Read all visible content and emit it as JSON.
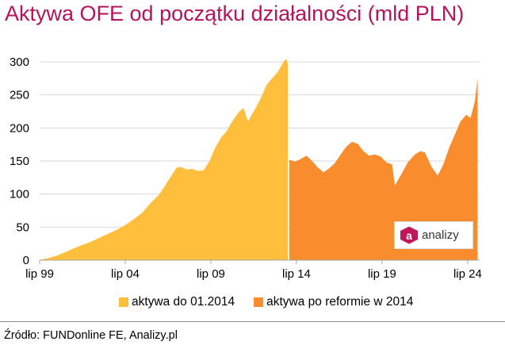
{
  "title": "Aktywa OFE od początku działalności (mld PLN)",
  "source": "Źródło: FUNDonline FE, Analizy.pl",
  "logo": {
    "mark": "a",
    "text": "analizy",
    "icon": "analizy-logo-icon"
  },
  "colors": {
    "title": "#b5135c",
    "series_before": "#ffbf3c",
    "series_after": "#f98c2c",
    "grid": "#d9d9d9"
  },
  "chart_data": {
    "type": "area",
    "title": "Aktywa OFE od początku działalności (mld PLN)",
    "xlabel": "",
    "ylabel": "",
    "ylim": [
      0,
      300
    ],
    "y_ticks": [
      0,
      50,
      100,
      150,
      200,
      250,
      300
    ],
    "x_range": [
      1999.5,
      2025.2
    ],
    "x_ticks": [
      {
        "label": "lip 99",
        "date": "1999-07"
      },
      {
        "label": "lip 04",
        "date": "2004-07"
      },
      {
        "label": "lip 09",
        "date": "2009-07"
      },
      {
        "label": "lip 14",
        "date": "2014-07"
      },
      {
        "label": "lip 19",
        "date": "2019-07"
      },
      {
        "label": "lip 24",
        "date": "2024-07"
      }
    ],
    "grid": "horizontal",
    "legend_position": "bottom",
    "series": [
      {
        "name": "aktywa do 01.2014",
        "color": "#ffbf3c",
        "points": [
          [
            "1999-06",
            0
          ],
          [
            "2000-01",
            3
          ],
          [
            "2000-07",
            7
          ],
          [
            "2001-01",
            12
          ],
          [
            "2001-07",
            18
          ],
          [
            "2002-01",
            23
          ],
          [
            "2002-07",
            28
          ],
          [
            "2003-01",
            34
          ],
          [
            "2003-07",
            40
          ],
          [
            "2004-01",
            46
          ],
          [
            "2004-07",
            53
          ],
          [
            "2005-01",
            62
          ],
          [
            "2005-07",
            72
          ],
          [
            "2006-01",
            87
          ],
          [
            "2006-07",
            100
          ],
          [
            "2007-01",
            120
          ],
          [
            "2007-07",
            140
          ],
          [
            "2007-10",
            141
          ],
          [
            "2008-02",
            137
          ],
          [
            "2008-06",
            138
          ],
          [
            "2008-10",
            135
          ],
          [
            "2009-02",
            136
          ],
          [
            "2009-06",
            150
          ],
          [
            "2009-10",
            170
          ],
          [
            "2010-02",
            185
          ],
          [
            "2010-06",
            195
          ],
          [
            "2010-10",
            210
          ],
          [
            "2011-03",
            225
          ],
          [
            "2011-06",
            230
          ],
          [
            "2011-09",
            210
          ],
          [
            "2012-01",
            225
          ],
          [
            "2012-06",
            245
          ],
          [
            "2012-10",
            265
          ],
          [
            "2013-02",
            275
          ],
          [
            "2013-06",
            285
          ],
          [
            "2013-10",
            300
          ],
          [
            "2013-12",
            305
          ],
          [
            "2014-01",
            297
          ]
        ]
      },
      {
        "name": "aktywa po reformie w 2014",
        "color": "#f98c2c",
        "points": [
          [
            "2014-02",
            152
          ],
          [
            "2014-06",
            149
          ],
          [
            "2014-10",
            153
          ],
          [
            "2015-02",
            158
          ],
          [
            "2015-06",
            150
          ],
          [
            "2015-10",
            140
          ],
          [
            "2016-02",
            133
          ],
          [
            "2016-06",
            139
          ],
          [
            "2016-10",
            147
          ],
          [
            "2017-02",
            160
          ],
          [
            "2017-06",
            172
          ],
          [
            "2017-10",
            179
          ],
          [
            "2018-02",
            176
          ],
          [
            "2018-06",
            165
          ],
          [
            "2018-10",
            158
          ],
          [
            "2019-02",
            160
          ],
          [
            "2019-06",
            157
          ],
          [
            "2019-10",
            148
          ],
          [
            "2020-02",
            145
          ],
          [
            "2020-04",
            113
          ],
          [
            "2020-08",
            128
          ],
          [
            "2021-01",
            148
          ],
          [
            "2021-06",
            160
          ],
          [
            "2021-10",
            165
          ],
          [
            "2022-01",
            163
          ],
          [
            "2022-06",
            140
          ],
          [
            "2022-10",
            128
          ],
          [
            "2023-02",
            145
          ],
          [
            "2023-06",
            170
          ],
          [
            "2023-10",
            190
          ],
          [
            "2024-02",
            210
          ],
          [
            "2024-06",
            220
          ],
          [
            "2024-09",
            215
          ],
          [
            "2024-12",
            240
          ],
          [
            "2025-02",
            275
          ]
        ]
      }
    ]
  }
}
